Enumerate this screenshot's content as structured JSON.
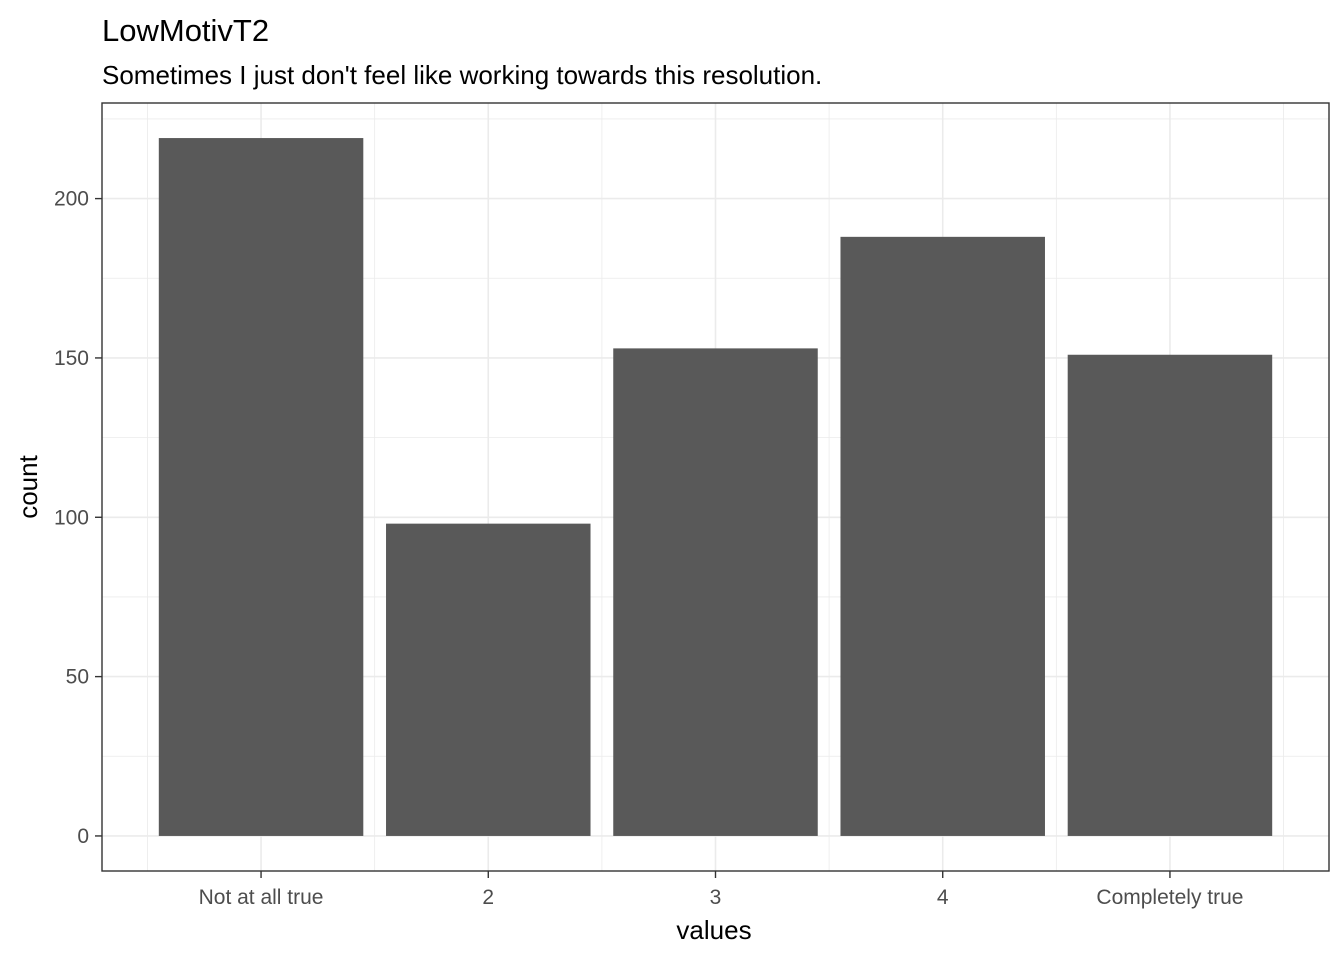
{
  "chart_data": {
    "type": "bar",
    "title": "LowMotivT2",
    "subtitle": "Sometimes I just don't feel like working towards this resolution.",
    "xlabel": "values",
    "ylabel": "count",
    "categories": [
      "Not at all true",
      "2",
      "3",
      "4",
      "Completely true"
    ],
    "values": [
      219,
      98,
      153,
      188,
      151
    ],
    "ylim": [
      -11,
      230
    ],
    "yticks": [
      0,
      50,
      100,
      150,
      200
    ],
    "grid": true,
    "bar_color": "#595959",
    "grid_color": "#ebebeb",
    "panel_border_color": "#333333"
  }
}
